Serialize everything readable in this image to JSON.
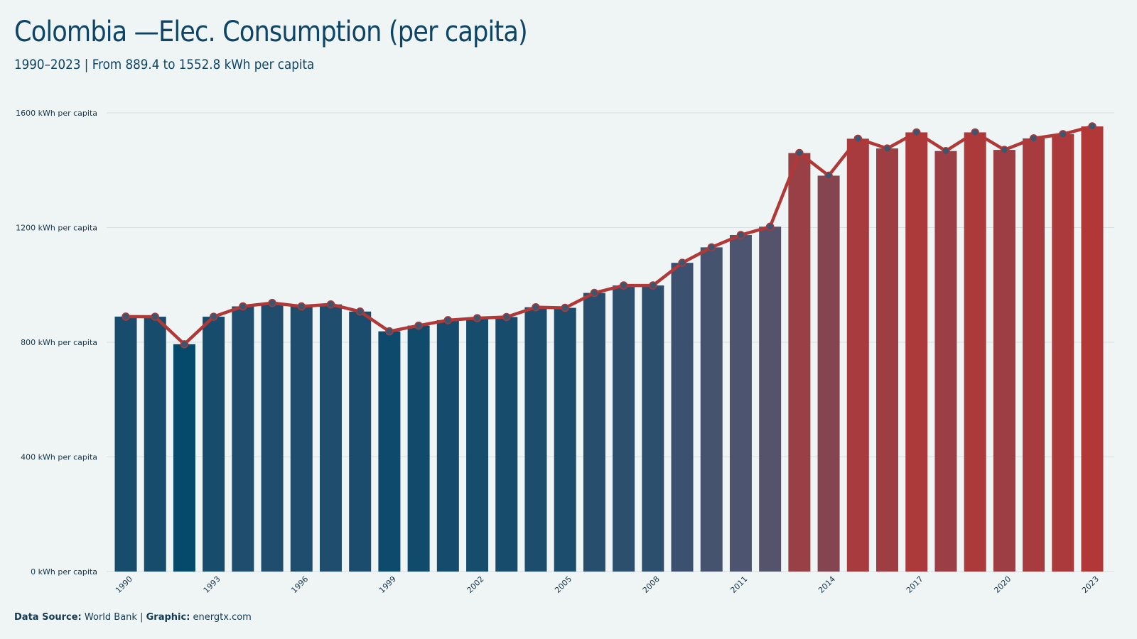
{
  "title": "Colombia —Elec. Consumption (per capita)",
  "subtitle": "1990–2023 | From 889.4 to 1552.8 kWh per capita",
  "footer": {
    "source_label": "Data Source:",
    "source_value": "World Bank",
    "separator": "|",
    "graphic_label": "Graphic:",
    "graphic_value": "energtx.com"
  },
  "colors": {
    "background": "#eff5f5",
    "low": "#05496b",
    "mid": "#4d5470",
    "high": "#b23838",
    "line": "#b23838",
    "marker": "#3b566e",
    "grid": "#d8e0e2"
  },
  "chart_data": {
    "type": "bar",
    "overlay": "line with markers",
    "x": [
      1990,
      1991,
      1992,
      1993,
      1994,
      1995,
      1996,
      1997,
      1998,
      1999,
      2000,
      2001,
      2002,
      2003,
      2004,
      2005,
      2006,
      2007,
      2008,
      2009,
      2010,
      2011,
      2012,
      2013,
      2014,
      2015,
      2016,
      2017,
      2018,
      2019,
      2020,
      2021,
      2022,
      2023
    ],
    "values": [
      889.4,
      889,
      793,
      889,
      925,
      937,
      925,
      932,
      907,
      838,
      858,
      877,
      884,
      888,
      922,
      920,
      972,
      998,
      998,
      1077,
      1131,
      1174,
      1203,
      1460,
      1381,
      1510,
      1476,
      1532,
      1467,
      1532,
      1471,
      1511,
      1526,
      1552.8
    ],
    "xticks": [
      "1990",
      "1993",
      "1996",
      "1999",
      "2002",
      "2005",
      "2008",
      "2011",
      "2014",
      "2017",
      "2020",
      "2023"
    ],
    "yticks": [
      "0 kWh per capita",
      "400 kWh per capita",
      "800 kWh per capita",
      "1200 kWh per capita",
      "1600 kWh per capita"
    ],
    "ytick_values": [
      0,
      400,
      800,
      1200,
      1600
    ],
    "ylim": [
      0,
      1600
    ],
    "grid": true,
    "legend": "none"
  }
}
